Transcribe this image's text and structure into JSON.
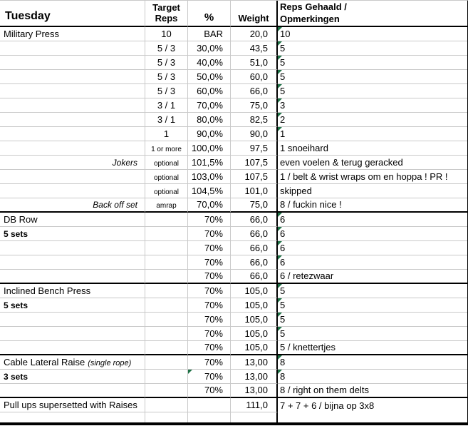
{
  "colors": {
    "flag_green": "#1e7145",
    "gridline_gray": "#c9c9c9",
    "section_border": "#000000"
  },
  "table": {
    "headers": {
      "day": "Tuesday",
      "target_reps": "Target\nReps",
      "percent": "%",
      "weight": "Weight",
      "reps_comments": "Reps Gehaald /\nOpmerkingen"
    },
    "rows": [
      {
        "exercise": "Military Press",
        "target": "10",
        "pct": "BAR",
        "weight": "20,0",
        "reps": "10",
        "reps_flag": true
      },
      {
        "target": "5 / 3",
        "pct": "30,0%",
        "weight": "43,5",
        "reps": "5",
        "reps_flag": true
      },
      {
        "target": "5 / 3",
        "pct": "40,0%",
        "weight": "51,0",
        "reps": "5",
        "reps_flag": true
      },
      {
        "target": "5 / 3",
        "pct": "50,0%",
        "weight": "60,0",
        "reps": "5",
        "reps_flag": true
      },
      {
        "target": "5 / 3",
        "pct": "60,0%",
        "weight": "66,0",
        "reps": "5",
        "reps_flag": true
      },
      {
        "target": "3 / 1",
        "pct": "70,0%",
        "weight": "75,0",
        "reps": "3",
        "reps_flag": true
      },
      {
        "target": "3 / 1",
        "pct": "80,0%",
        "weight": "82,5",
        "reps": "2",
        "reps_flag": true
      },
      {
        "target": "1",
        "pct": "90,0%",
        "weight": "90,0",
        "reps": "1",
        "reps_flag": true
      },
      {
        "target": "1 or more",
        "target_small": true,
        "pct": "100,0%",
        "weight": "97,5",
        "reps": "1 snoeihard"
      },
      {
        "exercise": "Jokers",
        "exercise_style": "italic-right",
        "target": "optional",
        "target_small": true,
        "pct": "101,5%",
        "weight": "107,5",
        "reps": "even voelen & terug geracked"
      },
      {
        "target": "optional",
        "target_small": true,
        "pct": "103,0%",
        "weight": "107,5",
        "reps": "1 / belt & wrist wraps om en hoppa ! PR !"
      },
      {
        "target": "optional",
        "target_small": true,
        "pct": "104,5%",
        "weight": "101,0",
        "reps": "skipped"
      },
      {
        "exercise": "Back off set",
        "exercise_style": "italic-right",
        "target": "amrap",
        "target_small": true,
        "pct": "70,0%",
        "weight": "75,0",
        "reps": "8 / fuckin nice !",
        "section_end": true
      },
      {
        "exercise": "DB Row",
        "pct": "70%",
        "weight": "66,0",
        "reps": "6",
        "reps_flag": true
      },
      {
        "exercise": "5 sets",
        "exercise_style": "bold",
        "pct": "70%",
        "weight": "66,0",
        "reps": "6",
        "reps_flag": true
      },
      {
        "pct": "70%",
        "weight": "66,0",
        "reps": "6",
        "reps_flag": true
      },
      {
        "pct": "70%",
        "weight": "66,0",
        "reps": "6",
        "reps_flag": true
      },
      {
        "pct": "70%",
        "weight": "66,0",
        "reps": "6 / retezwaar",
        "section_end": true
      },
      {
        "exercise": "Inclined Bench Press",
        "pct": "70%",
        "weight": "105,0",
        "reps": "5",
        "reps_flag": true
      },
      {
        "exercise": "5 sets",
        "exercise_style": "bold",
        "pct": "70%",
        "weight": "105,0",
        "reps": "5",
        "reps_flag": true
      },
      {
        "pct": "70%",
        "weight": "105,0",
        "reps": "5",
        "reps_flag": true
      },
      {
        "pct": "70%",
        "weight": "105,0",
        "reps": "5",
        "reps_flag": true
      },
      {
        "pct": "70%",
        "weight": "105,0",
        "reps": "5 / knettertjes",
        "section_end": true
      },
      {
        "exercise": "Cable Lateral Raise",
        "exercise_note": "(single rope)",
        "pct": "70%",
        "weight": "13,00",
        "reps": "8",
        "reps_flag": true
      },
      {
        "exercise": "3 sets",
        "exercise_style": "bold",
        "pct": "70%",
        "pct_flag": true,
        "weight": "13,00",
        "reps": "8",
        "reps_flag": true
      },
      {
        "pct": "70%",
        "weight": "13,00",
        "reps": "8 / right on them delts",
        "section_end": true
      },
      {
        "exercise": "Pull ups supersetted with Raises",
        "weight": "111,0",
        "reps": "7 + 7 + 6 / bijna op 3x8"
      },
      {
        "empty": true
      }
    ]
  }
}
